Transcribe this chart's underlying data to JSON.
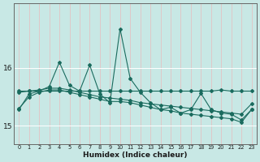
{
  "xlabel": "Humidex (Indice chaleur)",
  "bg_color": "#c8e8e5",
  "grid_color": "#b8d8d5",
  "line_color": "#1a6b5e",
  "series": {
    "s0": [
      15.28,
      15.55,
      15.6,
      15.68,
      16.1,
      15.7,
      15.6,
      16.05,
      15.55,
      15.4,
      16.68,
      15.82,
      15.58,
      15.4,
      15.28,
      15.32,
      15.22,
      15.28,
      15.56,
      15.28,
      15.22,
      15.2,
      15.1,
      15.28
    ],
    "s1": [
      15.6,
      15.6,
      15.6,
      15.6,
      15.6,
      15.6,
      15.6,
      15.6,
      15.6,
      15.6,
      15.6,
      15.6,
      15.6,
      15.6,
      15.6,
      15.6,
      15.6,
      15.6,
      15.6,
      15.6,
      15.62,
      15.6,
      15.6,
      15.6
    ],
    "s2": [
      15.3,
      15.5,
      15.58,
      15.62,
      15.62,
      15.58,
      15.54,
      15.5,
      15.46,
      15.42,
      15.42,
      15.4,
      15.36,
      15.32,
      15.28,
      15.26,
      15.22,
      15.2,
      15.18,
      15.16,
      15.14,
      15.12,
      15.06,
      15.28
    ],
    "s3": [
      15.58,
      15.6,
      15.62,
      15.65,
      15.65,
      15.62,
      15.58,
      15.54,
      15.5,
      15.48,
      15.46,
      15.44,
      15.4,
      15.38,
      15.36,
      15.34,
      15.32,
      15.3,
      15.28,
      15.26,
      15.24,
      15.22,
      15.2,
      15.38
    ]
  },
  "ylim": [
    14.68,
    17.12
  ],
  "yticks": [
    15,
    16
  ],
  "xlim": [
    -0.5,
    23.5
  ],
  "xticks": [
    0,
    1,
    2,
    3,
    4,
    5,
    6,
    7,
    8,
    9,
    10,
    11,
    12,
    13,
    14,
    15,
    16,
    17,
    18,
    19,
    20,
    21,
    22,
    23
  ]
}
